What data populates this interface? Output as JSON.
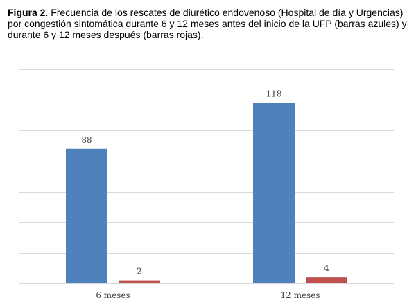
{
  "caption": {
    "label": "Figura 2",
    "text": ". Frecuencia de los rescates de diurético endovenoso (Hospital de día y Urgencias) por congestión sintomática durante 6 y 12 meses antes del inicio de la UFP (barras azules) y durante 6 y 12 meses después (barras rojas)."
  },
  "chart_data": {
    "type": "bar",
    "title": "",
    "xlabel": "",
    "ylabel": "",
    "categories": [
      "6 meses",
      "12 meses"
    ],
    "series": [
      {
        "values": [
          88,
          118
        ],
        "color": "#4F81BD"
      },
      {
        "values": [
          2,
          4
        ],
        "color": "#C0504D"
      }
    ],
    "ylim": [
      0,
      140
    ],
    "y_gridline_step": 20,
    "grid": true,
    "y_axis_tick_labels_shown": false,
    "data_labels": true,
    "legend": "none"
  }
}
